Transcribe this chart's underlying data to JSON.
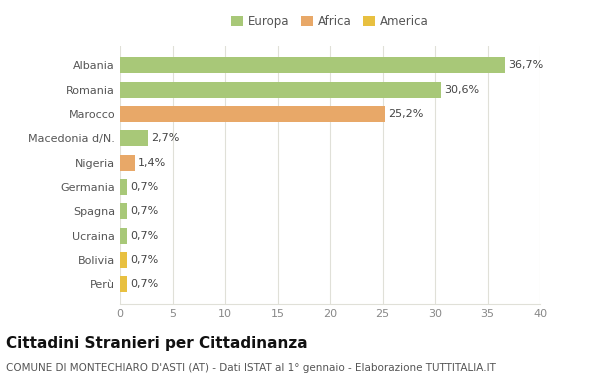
{
  "categories": [
    "Perù",
    "Bolivia",
    "Ucraina",
    "Spagna",
    "Germania",
    "Nigeria",
    "Macedonia d/N.",
    "Marocco",
    "Romania",
    "Albania"
  ],
  "values": [
    0.7,
    0.7,
    0.7,
    0.7,
    0.7,
    1.4,
    2.7,
    25.2,
    30.6,
    36.7
  ],
  "colors": [
    "#e8c040",
    "#e8c040",
    "#a8c878",
    "#a8c878",
    "#a8c878",
    "#e8a868",
    "#a8c878",
    "#e8a868",
    "#a8c878",
    "#a8c878"
  ],
  "labels": [
    "0,7%",
    "0,7%",
    "0,7%",
    "0,7%",
    "0,7%",
    "1,4%",
    "2,7%",
    "25,2%",
    "30,6%",
    "36,7%"
  ],
  "legend": [
    {
      "label": "Europa",
      "color": "#a8c878"
    },
    {
      "label": "Africa",
      "color": "#e8a868"
    },
    {
      "label": "America",
      "color": "#e8c040"
    }
  ],
  "xlim": [
    0,
    40
  ],
  "xticks": [
    0,
    5,
    10,
    15,
    20,
    25,
    30,
    35,
    40
  ],
  "title": "Cittadini Stranieri per Cittadinanza",
  "subtitle": "COMUNE DI MONTECHIARO D'ASTI (AT) - Dati ISTAT al 1° gennaio - Elaborazione TUTTITALIA.IT",
  "bg_color": "#ffffff",
  "chart_bg": "#ffffff",
  "grid_color": "#e0e0d8",
  "bar_height": 0.65,
  "label_fontsize": 8,
  "ytick_fontsize": 8,
  "xtick_fontsize": 8,
  "title_fontsize": 11,
  "subtitle_fontsize": 7.5,
  "legend_fontsize": 8.5
}
